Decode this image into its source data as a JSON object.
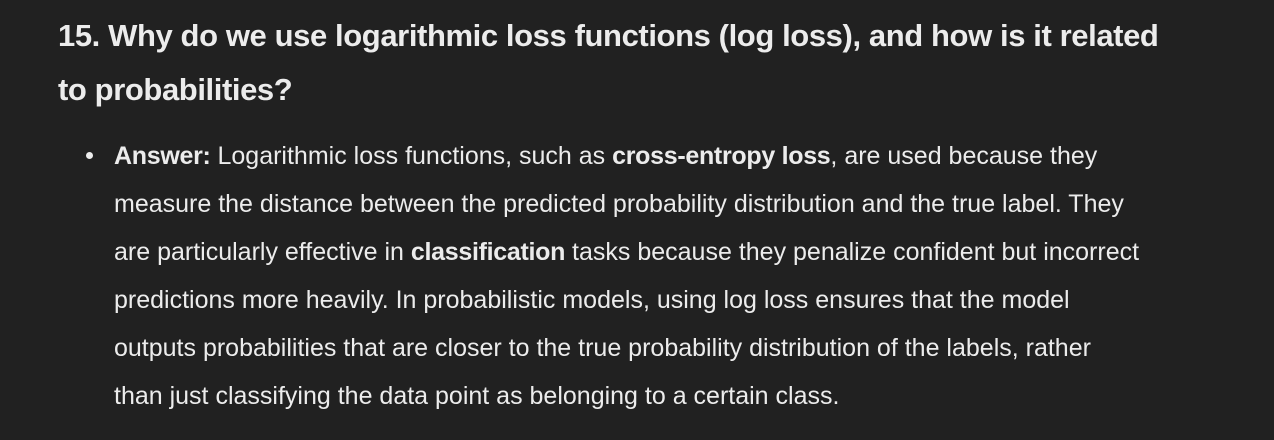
{
  "heading": {
    "line1": "15. Why do we use logarithmic loss functions (log loss), and how is it related",
    "line2": "to probabilities?"
  },
  "answer": {
    "label": "Answer:",
    "l1_a": " Logarithmic loss functions, such as ",
    "l1_bold": "cross-entropy loss",
    "l1_b": ", are used because they",
    "l2": "measure the distance between the predicted probability distribution and the true label. They",
    "l3_a": "are particularly effective in ",
    "l3_bold": "classification",
    "l3_b": " tasks because they penalize confident but incorrect",
    "l4": "predictions more heavily. In probabilistic models, using log loss ensures that the model",
    "l5": "outputs probabilities that are closer to the true probability distribution of the labels, rather",
    "l6": "than just classifying the data point as belonging to a certain class."
  }
}
